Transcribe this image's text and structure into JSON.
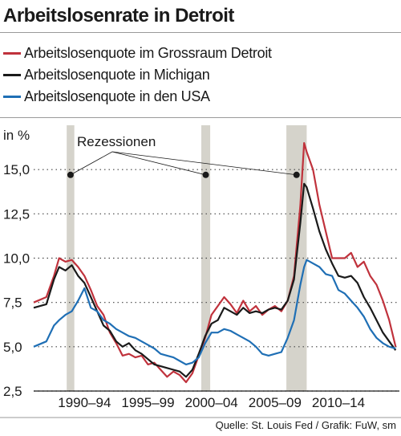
{
  "title": "Arbeitslosenrate in Detroit",
  "footer": "Quelle: St. Louis Fed / Grafik: FuW, sm",
  "colors": {
    "detroit": "#c0323c",
    "michigan": "#1a1a1a",
    "usa": "#1f6fb5",
    "recession": "#d5d3cb",
    "grid": "#444444"
  },
  "chart_data": {
    "type": "line",
    "ylabel": "in %",
    "yticks": [
      "2,5",
      "5,0",
      "7,5",
      "10,0",
      "12,5",
      "15,0"
    ],
    "ytick_values": [
      2.5,
      5.0,
      7.5,
      10.0,
      12.5,
      15.0
    ],
    "ylim": [
      2.5,
      17.5
    ],
    "xlim": [
      1988.0,
      2016.8
    ],
    "xtick_labels": [
      "1990–94",
      "1995–99",
      "2000–04",
      "2005–09",
      "2010–14"
    ],
    "xtick_centers": [
      1992.0,
      1997.0,
      2002.0,
      2007.0,
      2012.0
    ],
    "grid": true,
    "legend": [
      "Arbeitslosenquote im Grossraum Detroit",
      "Arbeitslosenquote in Michigan",
      "Arbeitslosenquote in den USA"
    ],
    "annotation": "Rezessionen",
    "recessions": [
      [
        1990.6,
        1991.2
      ],
      [
        2001.2,
        2001.9
      ],
      [
        2007.9,
        2009.5
      ]
    ],
    "series": [
      {
        "name": "Arbeitslosenquote im Grossraum Detroit",
        "x": [
          1988.0,
          1989.0,
          1989.6,
          1990.0,
          1990.5,
          1991.0,
          1991.5,
          1992.0,
          1992.5,
          1993.0,
          1993.5,
          1994.0,
          1994.5,
          1995.0,
          1995.5,
          1996.0,
          1996.5,
          1997.0,
          1997.5,
          1998.0,
          1998.5,
          1999.0,
          1999.5,
          2000.0,
          2000.5,
          2001.0,
          2001.5,
          2002.0,
          2002.5,
          2003.0,
          2003.5,
          2004.0,
          2004.5,
          2005.0,
          2005.5,
          2006.0,
          2006.5,
          2007.0,
          2007.5,
          2008.0,
          2008.5,
          2009.0,
          2009.3,
          2009.5,
          2010.0,
          2010.5,
          2011.0,
          2011.5,
          2012.0,
          2012.5,
          2013.0,
          2013.5,
          2014.0,
          2014.5,
          2015.0,
          2015.5,
          2016.0,
          2016.5
        ],
        "y": [
          7.5,
          7.8,
          9.0,
          10.0,
          9.8,
          9.9,
          9.5,
          9.0,
          8.2,
          7.3,
          6.8,
          5.8,
          5.2,
          4.5,
          4.6,
          4.4,
          4.5,
          4.0,
          4.1,
          3.7,
          3.3,
          3.6,
          3.4,
          3.0,
          3.5,
          4.5,
          5.5,
          6.8,
          7.3,
          7.8,
          7.4,
          6.9,
          7.6,
          7.0,
          7.3,
          6.8,
          7.1,
          7.3,
          7.0,
          7.6,
          9.0,
          13.0,
          16.5,
          16.0,
          15.0,
          13.0,
          11.5,
          10.0,
          10.0,
          10.0,
          10.3,
          9.5,
          9.8,
          9.0,
          8.5,
          7.6,
          6.5,
          5.0
        ]
      },
      {
        "name": "Arbeitslosenquote in Michigan",
        "x": [
          1988.0,
          1989.0,
          1989.6,
          1990.0,
          1990.5,
          1991.0,
          1991.5,
          1992.0,
          1992.5,
          1993.0,
          1993.5,
          1994.0,
          1994.5,
          1995.0,
          1995.5,
          1996.0,
          1996.5,
          1997.0,
          1997.5,
          1998.0,
          1998.5,
          1999.0,
          1999.5,
          2000.0,
          2000.5,
          2001.0,
          2001.5,
          2002.0,
          2002.5,
          2003.0,
          2003.5,
          2004.0,
          2004.5,
          2005.0,
          2005.5,
          2006.0,
          2006.5,
          2007.0,
          2007.5,
          2008.0,
          2008.5,
          2009.0,
          2009.3,
          2009.5,
          2010.0,
          2010.5,
          2011.0,
          2011.5,
          2012.0,
          2012.5,
          2013.0,
          2013.5,
          2014.0,
          2014.5,
          2015.0,
          2015.5,
          2016.0,
          2016.5
        ],
        "y": [
          7.2,
          7.4,
          8.8,
          9.5,
          9.3,
          9.6,
          9.0,
          8.6,
          7.8,
          7.0,
          6.2,
          5.9,
          5.3,
          5.0,
          5.2,
          4.8,
          4.6,
          4.3,
          4.0,
          3.9,
          3.8,
          3.7,
          3.6,
          3.3,
          3.7,
          4.6,
          5.6,
          6.3,
          6.5,
          7.2,
          7.0,
          6.8,
          7.2,
          6.9,
          7.0,
          6.9,
          7.1,
          7.2,
          7.1,
          7.6,
          8.8,
          12.0,
          14.2,
          14.0,
          12.8,
          11.5,
          10.5,
          9.7,
          9.0,
          8.9,
          9.0,
          8.6,
          7.8,
          7.2,
          6.5,
          5.8,
          5.3,
          4.8
        ]
      },
      {
        "name": "Arbeitslosenquote in den USA",
        "x": [
          1988.0,
          1989.0,
          1989.6,
          1990.0,
          1990.5,
          1991.0,
          1991.5,
          1992.0,
          1992.5,
          1993.0,
          1993.5,
          1994.0,
          1994.5,
          1995.0,
          1995.5,
          1996.0,
          1996.5,
          1997.0,
          1997.5,
          1998.0,
          1998.5,
          1999.0,
          1999.5,
          2000.0,
          2000.5,
          2001.0,
          2001.5,
          2002.0,
          2002.5,
          2003.0,
          2003.5,
          2004.0,
          2004.5,
          2005.0,
          2005.5,
          2006.0,
          2006.5,
          2007.0,
          2007.5,
          2008.0,
          2008.5,
          2009.0,
          2009.3,
          2009.5,
          2010.0,
          2010.5,
          2011.0,
          2011.5,
          2012.0,
          2012.5,
          2013.0,
          2013.5,
          2014.0,
          2014.5,
          2015.0,
          2015.5,
          2016.0,
          2016.5
        ],
        "y": [
          5.0,
          5.3,
          6.2,
          6.5,
          6.8,
          7.0,
          7.6,
          8.3,
          7.2,
          7.0,
          6.5,
          6.3,
          6.0,
          5.8,
          5.6,
          5.5,
          5.3,
          5.1,
          4.9,
          4.6,
          4.5,
          4.4,
          4.2,
          4.0,
          4.1,
          4.4,
          5.2,
          5.8,
          5.8,
          6.0,
          5.9,
          5.7,
          5.5,
          5.3,
          5.0,
          4.6,
          4.5,
          4.6,
          4.7,
          5.5,
          6.5,
          8.5,
          9.5,
          9.9,
          9.7,
          9.5,
          9.1,
          9.0,
          8.2,
          8.0,
          7.6,
          7.2,
          6.7,
          6.0,
          5.5,
          5.2,
          5.0,
          4.9
        ]
      }
    ]
  }
}
